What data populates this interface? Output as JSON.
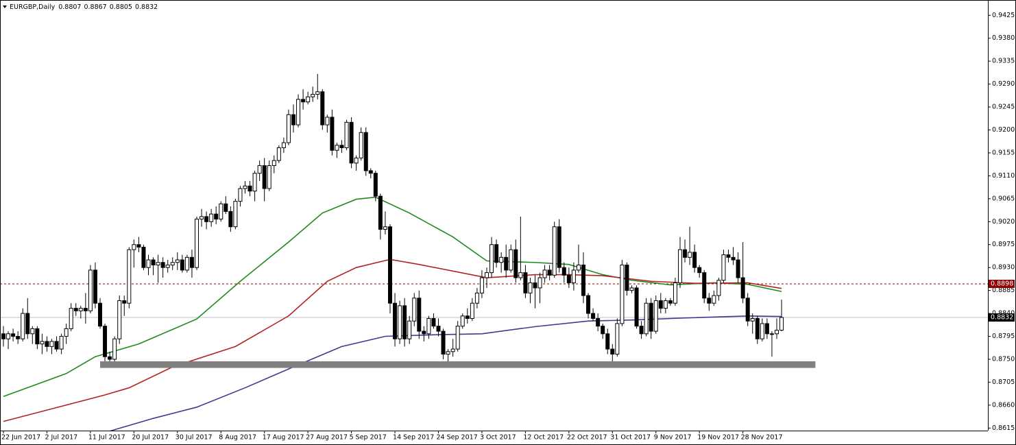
{
  "chart_data": {
    "type": "candlestick",
    "symbol": "EURGBP,Daily",
    "ylim": [
      0.861,
      0.9455
    ],
    "yticks": [
      0.9425,
      {
        "value": 0.938,
        "label": "0.9380"
      },
      0.9335,
      {
        "value": 0.929,
        "label": "0.9290"
      },
      0.9245,
      {
        "value": 0.92,
        "label": "0.9200"
      },
      0.9155,
      {
        "value": 0.911,
        "label": "0.9110"
      },
      0.9065,
      {
        "value": 0.902,
        "label": "0.9020"
      },
      0.8975,
      {
        "value": 0.893,
        "label": "0.8930"
      },
      0.8885,
      {
        "value": 0.884,
        "label": "0.8840"
      },
      0.8795,
      {
        "value": 0.875,
        "label": "0.8750"
      },
      0.8705,
      {
        "value": 0.866,
        "label": "0.8660"
      },
      0.8615
    ],
    "categories": [
      "22 Jun 2017",
      null,
      null,
      null,
      null,
      null,
      null,
      null,
      null,
      "2 Jul 2017",
      null,
      null,
      null,
      null,
      null,
      null,
      null,
      null,
      "11 Jul 2017",
      null,
      null,
      null,
      null,
      null,
      null,
      null,
      null,
      "20 Jul 2017",
      null,
      null,
      null,
      null,
      null,
      null,
      null,
      null,
      "30 Jul 2017",
      null,
      null,
      null,
      null,
      null,
      null,
      null,
      null,
      "8 Aug 2017",
      null,
      null,
      null,
      null,
      null,
      null,
      null,
      null,
      "17 Aug 2017",
      null,
      null,
      null,
      null,
      null,
      null,
      null,
      null,
      "27 Aug 2017",
      null,
      null,
      null,
      null,
      null,
      null,
      null,
      null,
      "5 Sep 2017",
      null,
      null,
      null,
      null,
      null,
      null,
      null,
      null,
      "14 Sep 2017",
      null,
      null,
      null,
      null,
      null,
      null,
      null,
      null,
      "24 Sep 2017",
      null,
      null,
      null,
      null,
      null,
      null,
      null,
      null,
      "3 Oct 2017",
      null,
      null,
      null,
      null,
      null,
      null,
      null,
      null,
      "12 Oct 2017",
      null,
      null,
      null,
      null,
      null,
      null,
      null,
      null,
      "22 Oct 2017",
      null,
      null,
      null,
      null,
      null,
      null,
      null,
      null,
      "31 Oct 2017",
      null,
      null,
      null,
      null,
      null,
      null,
      null,
      null,
      "9 Nov 2017",
      null,
      null,
      null,
      null,
      null,
      null,
      null,
      null,
      "19 Nov 2017",
      null,
      null,
      null,
      null,
      null,
      null,
      null,
      null,
      "28 Nov 2017",
      null,
      null,
      null,
      null,
      null,
      null,
      null,
      null
    ],
    "ohlc": [
      [
        0.88,
        0.8815,
        0.8775,
        0.879
      ],
      [
        0.879,
        0.8805,
        0.877,
        0.88
      ],
      [
        0.88,
        0.881,
        0.8785,
        0.8795
      ],
      [
        0.8795,
        0.8805,
        0.878,
        0.879
      ],
      [
        0.879,
        0.885,
        0.8785,
        0.884
      ],
      [
        0.884,
        0.887,
        0.879,
        0.88
      ],
      [
        0.88,
        0.8815,
        0.878,
        0.881
      ],
      [
        0.881,
        0.8815,
        0.877,
        0.878
      ],
      [
        0.878,
        0.88,
        0.876,
        0.8785
      ],
      [
        0.8785,
        0.8795,
        0.8765,
        0.8775
      ],
      [
        0.8775,
        0.879,
        0.876,
        0.8785
      ],
      [
        0.8785,
        0.8795,
        0.8765,
        0.877
      ],
      [
        0.877,
        0.88,
        0.876,
        0.8795
      ],
      [
        0.8795,
        0.882,
        0.878,
        0.881
      ],
      [
        0.881,
        0.886,
        0.8805,
        0.885
      ],
      [
        0.885,
        0.886,
        0.8835,
        0.8845
      ],
      [
        0.8845,
        0.8855,
        0.883,
        0.885
      ],
      [
        0.885,
        0.888,
        0.882,
        0.8845
      ],
      [
        0.8845,
        0.8935,
        0.884,
        0.8925
      ],
      [
        0.8925,
        0.894,
        0.885,
        0.886
      ],
      [
        0.886,
        0.887,
        0.881,
        0.8815
      ],
      [
        0.8815,
        0.882,
        0.8745,
        0.8755
      ],
      [
        0.8755,
        0.8765,
        0.874,
        0.875
      ],
      [
        0.875,
        0.8795,
        0.8745,
        0.879
      ],
      [
        0.879,
        0.8875,
        0.878,
        0.8865
      ],
      [
        0.8865,
        0.8875,
        0.8835,
        0.886
      ],
      [
        0.886,
        0.897,
        0.885,
        0.8965
      ],
      [
        0.8965,
        0.8985,
        0.893,
        0.8975
      ],
      [
        0.8975,
        0.899,
        0.896,
        0.897
      ],
      [
        0.897,
        0.8975,
        0.8925,
        0.893
      ],
      [
        0.893,
        0.8955,
        0.8915,
        0.8945
      ],
      [
        0.8945,
        0.895,
        0.8915,
        0.8935
      ],
      [
        0.8935,
        0.8955,
        0.89,
        0.894
      ],
      [
        0.894,
        0.895,
        0.891,
        0.893
      ],
      [
        0.893,
        0.8945,
        0.892,
        0.8935
      ],
      [
        0.8935,
        0.895,
        0.8925,
        0.894
      ],
      [
        0.894,
        0.896,
        0.8925,
        0.8945
      ],
      [
        0.8945,
        0.8955,
        0.892,
        0.8925
      ],
      [
        0.8925,
        0.8955,
        0.892,
        0.895
      ],
      [
        0.895,
        0.8965,
        0.891,
        0.893
      ],
      [
        0.893,
        0.903,
        0.8925,
        0.9025
      ],
      [
        0.9025,
        0.9045,
        0.901,
        0.903
      ],
      [
        0.903,
        0.904,
        0.9005,
        0.902
      ],
      [
        0.902,
        0.9045,
        0.901,
        0.9035
      ],
      [
        0.9035,
        0.905,
        0.9015,
        0.9025
      ],
      [
        0.9025,
        0.906,
        0.902,
        0.9055
      ],
      [
        0.9055,
        0.907,
        0.9035,
        0.904
      ],
      [
        0.904,
        0.905,
        0.9,
        0.901
      ],
      [
        0.901,
        0.9065,
        0.9005,
        0.906
      ],
      [
        0.906,
        0.909,
        0.905,
        0.9085
      ],
      [
        0.9085,
        0.91,
        0.9075,
        0.909
      ],
      [
        0.909,
        0.91,
        0.907,
        0.908
      ],
      [
        0.908,
        0.912,
        0.906,
        0.9115
      ],
      [
        0.9115,
        0.914,
        0.91,
        0.913
      ],
      [
        0.913,
        0.9145,
        0.906,
        0.9085
      ],
      [
        0.9085,
        0.914,
        0.908,
        0.913
      ],
      [
        0.913,
        0.915,
        0.9115,
        0.914
      ],
      [
        0.914,
        0.917,
        0.9135,
        0.9165
      ],
      [
        0.9165,
        0.9185,
        0.9155,
        0.9175
      ],
      [
        0.9175,
        0.924,
        0.917,
        0.923
      ],
      [
        0.923,
        0.925,
        0.9195,
        0.921
      ],
      [
        0.921,
        0.927,
        0.9205,
        0.926
      ],
      [
        0.926,
        0.928,
        0.924,
        0.9255
      ],
      [
        0.9255,
        0.9275,
        0.925,
        0.9265
      ],
      [
        0.9265,
        0.9285,
        0.9255,
        0.927
      ],
      [
        0.927,
        0.931,
        0.926,
        0.9275
      ],
      [
        0.9275,
        0.928,
        0.92,
        0.921
      ],
      [
        0.921,
        0.923,
        0.9195,
        0.9225
      ],
      [
        0.9225,
        0.924,
        0.915,
        0.916
      ],
      [
        0.916,
        0.9175,
        0.9145,
        0.917
      ],
      [
        0.917,
        0.918,
        0.9155,
        0.9165
      ],
      [
        0.9165,
        0.922,
        0.916,
        0.9215
      ],
      [
        0.9215,
        0.9225,
        0.9125,
        0.9135
      ],
      [
        0.9135,
        0.915,
        0.912,
        0.9145
      ],
      [
        0.9145,
        0.9205,
        0.914,
        0.9195
      ],
      [
        0.9195,
        0.9205,
        0.911,
        0.912
      ],
      [
        0.912,
        0.9125,
        0.9105,
        0.9115
      ],
      [
        0.9115,
        0.912,
        0.906,
        0.907
      ],
      [
        0.907,
        0.9075,
        0.8985,
        0.9005
      ],
      [
        0.9005,
        0.904,
        0.8995,
        0.901
      ],
      [
        0.901,
        0.9015,
        0.884,
        0.886
      ],
      [
        0.886,
        0.888,
        0.8775,
        0.879
      ],
      [
        0.879,
        0.8865,
        0.878,
        0.8855
      ],
      [
        0.8855,
        0.887,
        0.8775,
        0.879
      ],
      [
        0.879,
        0.8835,
        0.878,
        0.8825
      ],
      [
        0.8825,
        0.888,
        0.8815,
        0.887
      ],
      [
        0.887,
        0.8885,
        0.879,
        0.8805
      ],
      [
        0.8805,
        0.8815,
        0.8785,
        0.88
      ],
      [
        0.88,
        0.8835,
        0.879,
        0.883
      ],
      [
        0.883,
        0.884,
        0.881,
        0.8815
      ],
      [
        0.8815,
        0.883,
        0.8795,
        0.8805
      ],
      [
        0.8805,
        0.881,
        0.875,
        0.876
      ],
      [
        0.876,
        0.877,
        0.8745,
        0.8765
      ],
      [
        0.8765,
        0.879,
        0.8755,
        0.877
      ],
      [
        0.877,
        0.8825,
        0.8765,
        0.8815
      ],
      [
        0.8815,
        0.884,
        0.881,
        0.8835
      ],
      [
        0.8835,
        0.885,
        0.882,
        0.883
      ],
      [
        0.883,
        0.887,
        0.8825,
        0.886
      ],
      [
        0.886,
        0.889,
        0.885,
        0.888
      ],
      [
        0.888,
        0.8925,
        0.887,
        0.891
      ],
      [
        0.891,
        0.893,
        0.889,
        0.892
      ],
      [
        0.892,
        0.899,
        0.891,
        0.8975
      ],
      [
        0.8975,
        0.8985,
        0.893,
        0.894
      ],
      [
        0.894,
        0.896,
        0.892,
        0.895
      ],
      [
        0.895,
        0.8975,
        0.891,
        0.8925
      ],
      [
        0.8925,
        0.8975,
        0.892,
        0.8965
      ],
      [
        0.8965,
        0.8985,
        0.89,
        0.891
      ],
      [
        0.891,
        0.903,
        0.8905,
        0.892
      ],
      [
        0.892,
        0.8935,
        0.887,
        0.888
      ],
      [
        0.888,
        0.891,
        0.886,
        0.89
      ],
      [
        0.89,
        0.8915,
        0.885,
        0.889
      ],
      [
        0.889,
        0.892,
        0.886,
        0.891
      ],
      [
        0.891,
        0.8935,
        0.89,
        0.8925
      ],
      [
        0.8925,
        0.8935,
        0.8905,
        0.8915
      ],
      [
        0.8915,
        0.902,
        0.891,
        0.901
      ],
      [
        0.901,
        0.9025,
        0.892,
        0.893
      ],
      [
        0.893,
        0.894,
        0.89,
        0.8915
      ],
      [
        0.8915,
        0.893,
        0.889,
        0.89
      ],
      [
        0.89,
        0.894,
        0.8885,
        0.8925
      ],
      [
        0.8925,
        0.8975,
        0.892,
        0.8935
      ],
      [
        0.8935,
        0.896,
        0.886,
        0.8875
      ],
      [
        0.8875,
        0.888,
        0.883,
        0.884
      ],
      [
        0.884,
        0.885,
        0.8825,
        0.883
      ],
      [
        0.883,
        0.884,
        0.8805,
        0.8815
      ],
      [
        0.8815,
        0.882,
        0.879,
        0.88
      ],
      [
        0.88,
        0.881,
        0.876,
        0.877
      ],
      [
        0.877,
        0.878,
        0.8735,
        0.876
      ],
      [
        0.876,
        0.883,
        0.8755,
        0.882
      ],
      [
        0.882,
        0.8945,
        0.8815,
        0.8935
      ],
      [
        0.8935,
        0.894,
        0.8875,
        0.8885
      ],
      [
        0.8885,
        0.8895,
        0.888,
        0.889
      ],
      [
        0.889,
        0.8895,
        0.881,
        0.8815
      ],
      [
        0.8815,
        0.8825,
        0.879,
        0.88
      ],
      [
        0.88,
        0.887,
        0.8795,
        0.886
      ],
      [
        0.886,
        0.887,
        0.879,
        0.8805
      ],
      [
        0.8805,
        0.8875,
        0.88,
        0.8865
      ],
      [
        0.8865,
        0.888,
        0.884,
        0.885
      ],
      [
        0.885,
        0.887,
        0.884,
        0.8865
      ],
      [
        0.8865,
        0.887,
        0.8855,
        0.886
      ],
      [
        0.886,
        0.891,
        0.8855,
        0.89
      ],
      [
        0.89,
        0.899,
        0.889,
        0.8965
      ],
      [
        0.8965,
        0.8985,
        0.894,
        0.895
      ],
      [
        0.895,
        0.901,
        0.8935,
        0.896
      ],
      [
        0.896,
        0.8975,
        0.892,
        0.893
      ],
      [
        0.893,
        0.8935,
        0.891,
        0.892
      ],
      [
        0.892,
        0.8925,
        0.886,
        0.887
      ],
      [
        0.887,
        0.888,
        0.8845,
        0.886
      ],
      [
        0.886,
        0.8885,
        0.8855,
        0.8875
      ],
      [
        0.8875,
        0.891,
        0.8865,
        0.8905
      ],
      [
        0.8905,
        0.8965,
        0.89,
        0.8955
      ],
      [
        0.8955,
        0.8965,
        0.894,
        0.895
      ],
      [
        0.895,
        0.897,
        0.8935,
        0.8945
      ],
      [
        0.8945,
        0.896,
        0.89,
        0.891
      ],
      [
        0.891,
        0.898,
        0.886,
        0.887
      ],
      [
        0.887,
        0.888,
        0.8815,
        0.8825
      ],
      [
        0.8825,
        0.884,
        0.88,
        0.883
      ],
      [
        0.883,
        0.8835,
        0.878,
        0.879
      ],
      [
        0.879,
        0.883,
        0.8785,
        0.882
      ],
      [
        0.882,
        0.883,
        0.879,
        0.88
      ],
      [
        0.88,
        0.8805,
        0.8755,
        0.88
      ],
      [
        0.88,
        0.883,
        0.879,
        0.8807
      ],
      [
        0.8807,
        0.8867,
        0.8805,
        0.8832
      ]
    ],
    "series": [
      {
        "color": "#1e8a1e",
        "x": [
          0,
          13,
          19,
          28,
          40,
          49,
          59,
          66,
          73,
          77,
          84,
          93,
          100,
          110,
          117,
          124,
          130,
          138,
          147,
          154,
          161
        ],
        "values": [
          0.8677,
          0.8722,
          0.8755,
          0.878,
          0.8829,
          0.8903,
          0.898,
          0.9037,
          0.9064,
          0.9068,
          0.9037,
          0.899,
          0.8943,
          0.894,
          0.8936,
          0.8916,
          0.8905,
          0.8896,
          0.89,
          0.8897,
          0.8883
        ]
      },
      {
        "color": "#b22222",
        "x": [
          0,
          21,
          26,
          35,
          48,
          59,
          67,
          73,
          80,
          86,
          100,
          110,
          117,
          124,
          134,
          143,
          154,
          161
        ],
        "values": [
          0.8628,
          0.868,
          0.8694,
          0.8735,
          0.8775,
          0.8835,
          0.8903,
          0.893,
          0.8946,
          0.8936,
          0.891,
          0.8916,
          0.8916,
          0.8914,
          0.8903,
          0.8899,
          0.89,
          0.8889
        ]
      },
      {
        "color": "#3b3b8f",
        "x": [
          22,
          31,
          40,
          50,
          60,
          70,
          79,
          89,
          99,
          110,
          121,
          130,
          141,
          154,
          161
        ],
        "values": [
          0.8609,
          0.8634,
          0.8656,
          0.8694,
          0.8735,
          0.8775,
          0.8795,
          0.8798,
          0.88,
          0.8814,
          0.8825,
          0.8827,
          0.8831,
          0.8835,
          0.8834
        ]
      }
    ],
    "level": 0.8898,
    "level_color": "#8b0000",
    "zone": {
      "from": 20,
      "to": 168,
      "low": 0.8733,
      "high": 0.8746,
      "color": "#808080"
    }
  }
}
